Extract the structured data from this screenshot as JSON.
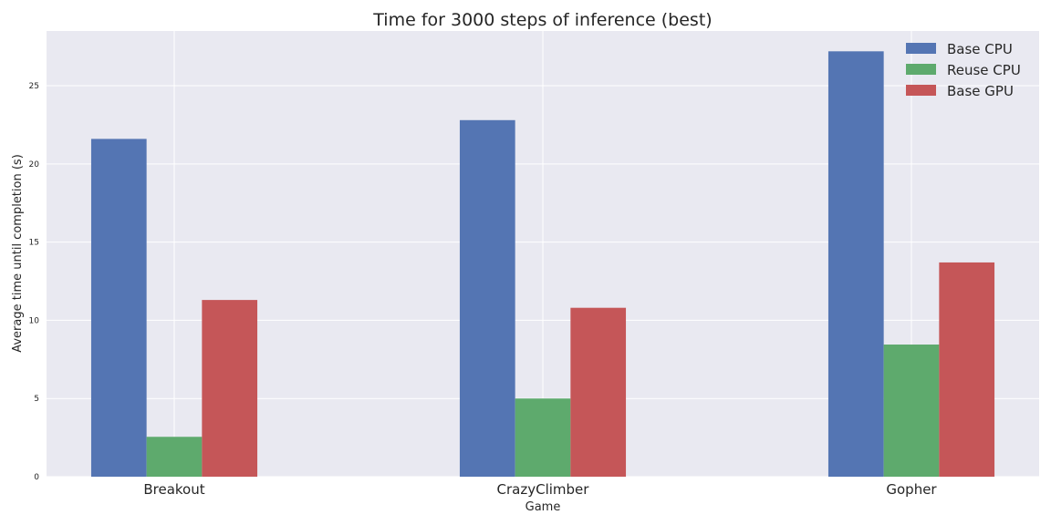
{
  "chart_data": {
    "type": "bar",
    "title": "Time for 3000 steps of inference (best)",
    "xlabel": "Game",
    "ylabel": "Average time until completion (s)",
    "categories": [
      "Breakout",
      "CrazyClimber",
      "Gopher"
    ],
    "series": [
      {
        "name": "Base CPU",
        "color": "#5475b3",
        "values": [
          21.6,
          22.8,
          27.2
        ]
      },
      {
        "name": "Reuse CPU",
        "color": "#5eaa6d",
        "values": [
          2.55,
          5.0,
          8.45
        ]
      },
      {
        "name": "Base GPU",
        "color": "#c55658",
        "values": [
          11.3,
          10.8,
          13.7
        ]
      }
    ],
    "ylim": [
      0,
      28.5
    ],
    "yticks": [
      0,
      5,
      10,
      15,
      20,
      25
    ],
    "grid": true,
    "legend": "top-right",
    "background": "#e9e9f1"
  }
}
